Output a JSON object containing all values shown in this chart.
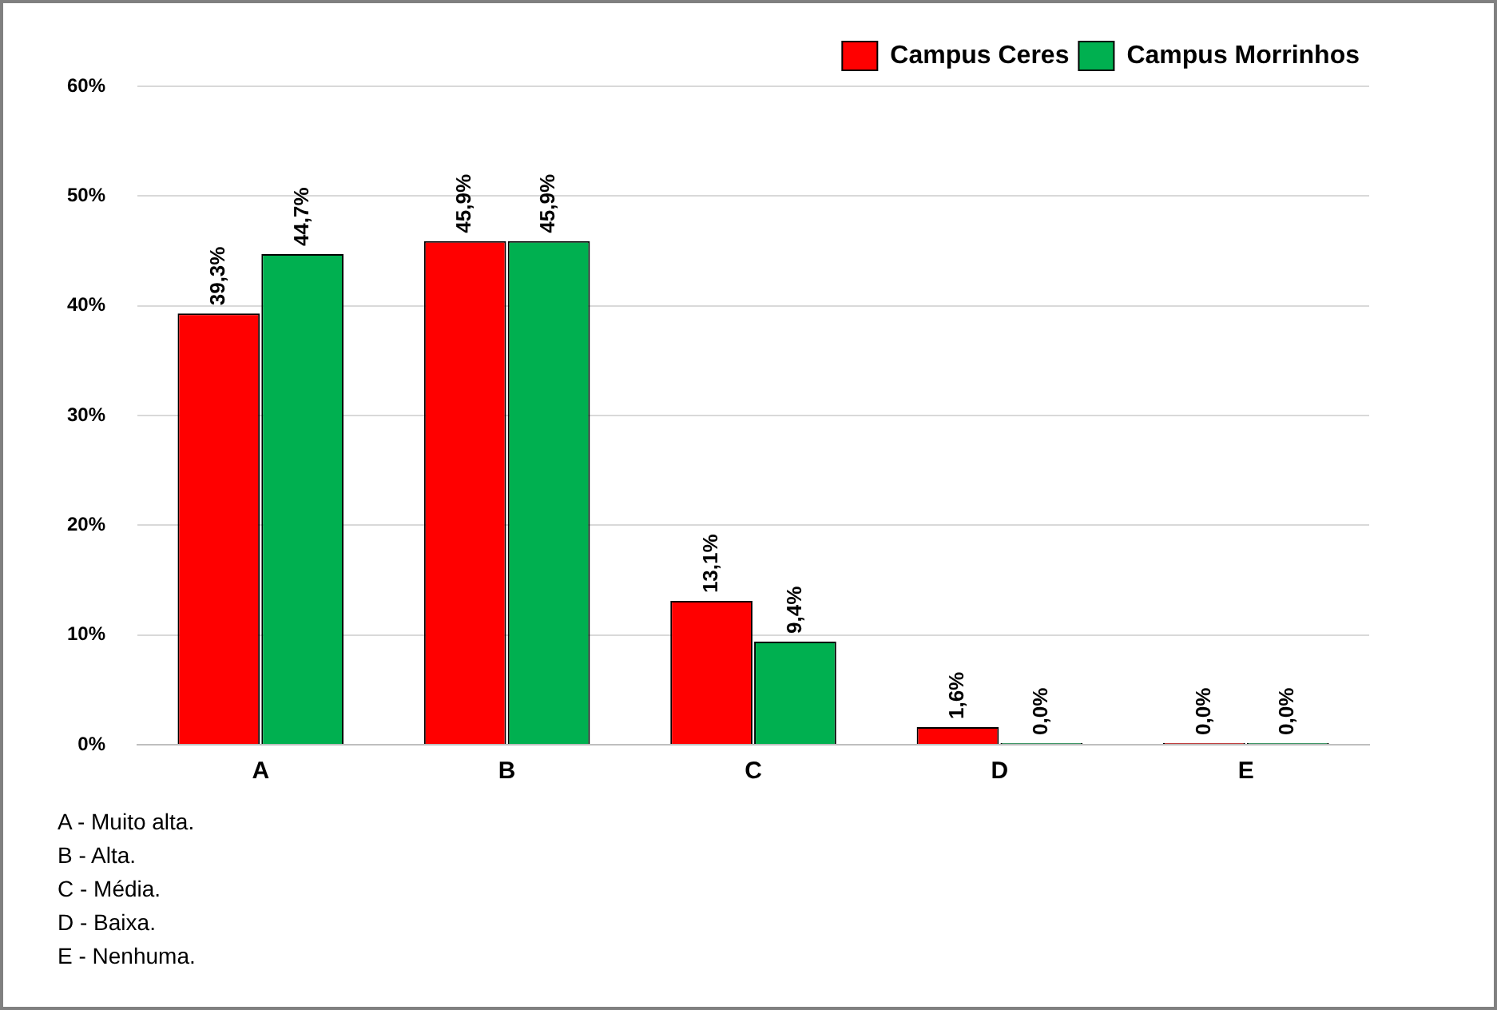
{
  "chart_data": {
    "type": "bar",
    "categories": [
      "A",
      "B",
      "C",
      "D",
      "E"
    ],
    "series": [
      {
        "name": "Campus Ceres",
        "color": "#ff0000",
        "values": [
          39.3,
          45.9,
          13.1,
          1.6,
          0.0
        ],
        "value_labels": [
          "39,3%",
          "45,9%",
          "13,1%",
          "1,6%",
          "0,0%"
        ]
      },
      {
        "name": "Campus Morrinhos",
        "color": "#00b050",
        "values": [
          44.7,
          45.9,
          9.4,
          0.0,
          0.0
        ],
        "value_labels": [
          "44,7%",
          "45,9%",
          "9,4%",
          "0,0%",
          "0,0%"
        ]
      }
    ],
    "ylim": [
      0,
      60
    ],
    "yticks": [
      {
        "value": 0,
        "label": "0%"
      },
      {
        "value": 10,
        "label": "10%"
      },
      {
        "value": 20,
        "label": "20%"
      },
      {
        "value": 30,
        "label": "30%"
      },
      {
        "value": 40,
        "label": "40%"
      },
      {
        "value": 50,
        "label": "50%"
      },
      {
        "value": 60,
        "label": "60%"
      }
    ],
    "grid": "y",
    "legend": "top right",
    "annotations": [
      "A - Muito alta.",
      "B - Alta.",
      "C - Média.",
      "D - Baixa.",
      "E - Nenhuma."
    ]
  }
}
